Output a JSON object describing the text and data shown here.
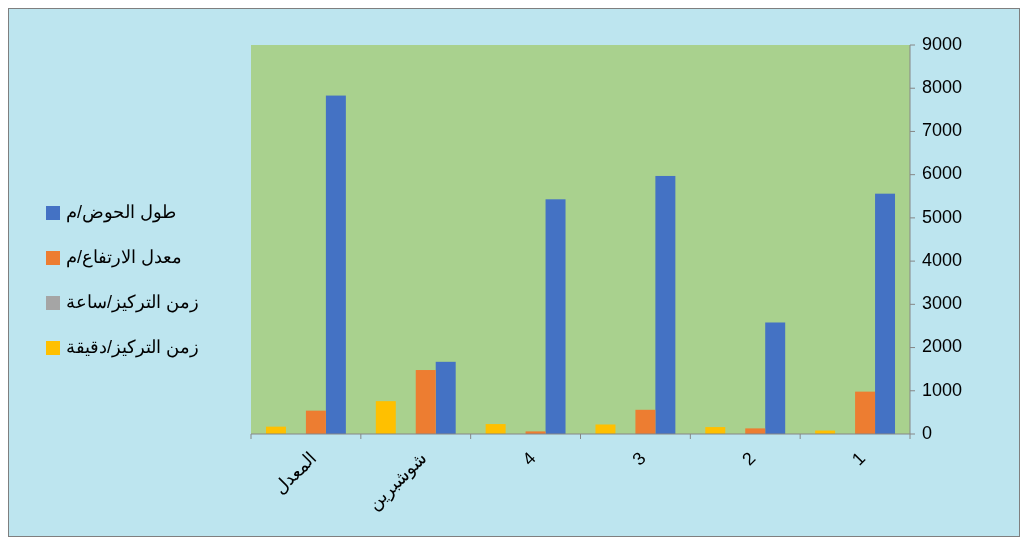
{
  "chart_data": {
    "type": "bar",
    "categories": [
      "المعدل",
      "شوشبرين",
      "4",
      "3",
      "2",
      "1"
    ],
    "series": [
      {
        "name": "طول الحوض/م",
        "color": "#4472c4",
        "values": [
          7830,
          1670,
          5430,
          5970,
          2580,
          5560
        ]
      },
      {
        "name": "معدل الارتفاع/م",
        "color": "#ed7d31",
        "values": [
          540,
          1480,
          60,
          560,
          130,
          980
        ]
      },
      {
        "name": "زمن التركيز/ساعة",
        "color": "#a5a5a5",
        "values": [
          null,
          null,
          null,
          null,
          null,
          null
        ]
      },
      {
        "name": "زمن التركيز/دقيقة",
        "color": "#ffc000",
        "values": [
          170,
          760,
          230,
          220,
          160,
          80
        ]
      }
    ],
    "ylim": [
      0,
      9000
    ],
    "yticks": [
      0,
      1000,
      2000,
      3000,
      4000,
      5000,
      6000,
      7000,
      8000,
      9000
    ],
    "grid": false,
    "legend": "left"
  }
}
